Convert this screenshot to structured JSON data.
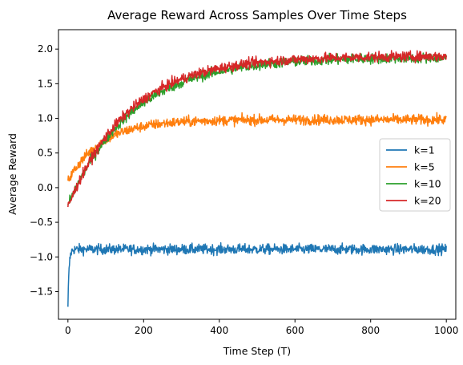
{
  "chart_data": {
    "type": "line",
    "title": "Average Reward Across Samples Over Time Steps",
    "xlabel": "Time Step (T)",
    "ylabel": "Average Reward",
    "xlim": [
      -25,
      1025
    ],
    "ylim": [
      -1.9,
      2.28
    ],
    "xticks": [
      0,
      200,
      400,
      600,
      800,
      1000
    ],
    "xtick_labels": [
      "0",
      "200",
      "400",
      "600",
      "800",
      "1000"
    ],
    "yticks": [
      -1.5,
      -1.0,
      -0.5,
      0.0,
      0.5,
      1.0,
      1.5,
      2.0
    ],
    "ytick_labels": [
      "−1.5",
      "−1.0",
      "−0.5",
      "0.0",
      "0.5",
      "1.0",
      "1.5",
      "2.0"
    ],
    "grid": false,
    "legend_position": "center-right",
    "series": [
      {
        "name": "k=1",
        "color": "#1f77b4",
        "shape": {
          "start": -1.72,
          "plateau": -0.89,
          "tau": 3,
          "noise": 0.07
        }
      },
      {
        "name": "k=5",
        "color": "#ff7f0e",
        "shape": {
          "start": 0.1,
          "plateau": 0.98,
          "tau": 90,
          "noise": 0.07
        }
      },
      {
        "name": "k=10",
        "color": "#2ca02c",
        "shape": {
          "start": -0.25,
          "plateau": 1.88,
          "tau": 170,
          "noise": 0.07
        }
      },
      {
        "name": "k=20",
        "color": "#d62728",
        "shape": {
          "start": -0.28,
          "plateau": 1.9,
          "tau": 160,
          "noise": 0.07
        }
      }
    ]
  }
}
